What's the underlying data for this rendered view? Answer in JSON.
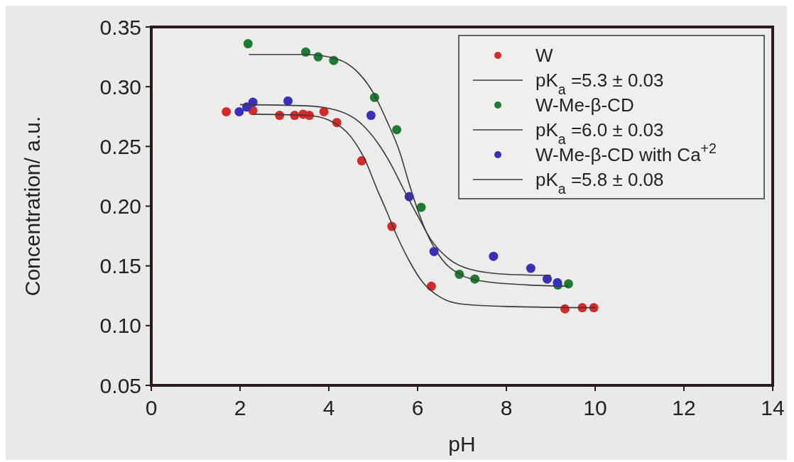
{
  "chart_data": {
    "type": "scatter",
    "xlabel": "pH",
    "ylabel": "Concentration/ a.u.",
    "xlim": [
      0,
      14
    ],
    "ylim": [
      0.05,
      0.35
    ],
    "xticks": [
      0,
      2,
      4,
      6,
      8,
      10,
      12,
      14
    ],
    "yticks": [
      {
        "value": 0.05,
        "label": "0.05"
      },
      {
        "value": 0.1,
        "label": "0.10"
      },
      {
        "value": 0.15,
        "label": "0.15"
      },
      {
        "value": 0.2,
        "label": "0.20"
      },
      {
        "value": 0.25,
        "label": "0.25"
      },
      {
        "value": 0.3,
        "label": "0.30"
      },
      {
        "value": 0.35,
        "label": "0.35"
      }
    ],
    "grid": false,
    "legend": "top right",
    "marker": "circle",
    "series": [
      {
        "name": "W",
        "color": "#d42a2a",
        "x": [
          1.69,
          2.29,
          2.89,
          3.23,
          3.42,
          3.56,
          3.89,
          4.18,
          4.74,
          5.42,
          6.31,
          9.32,
          9.71,
          9.97
        ],
        "values": [
          0.279,
          0.28,
          0.276,
          0.276,
          0.277,
          0.276,
          0.279,
          0.27,
          0.238,
          0.183,
          0.133,
          0.114,
          0.115,
          0.115
        ]
      },
      {
        "name": "pK$_{a}$ =5.3 ± 0.03",
        "type": "line",
        "color": "#3a3a3a",
        "marker": "none",
        "x": [
          2.3,
          3.5,
          4.0,
          4.5,
          4.8,
          5.1,
          5.3,
          5.5,
          5.8,
          6.1,
          6.5,
          7.0,
          8.0,
          10.0
        ],
        "values": [
          0.277,
          0.276,
          0.272,
          0.258,
          0.24,
          0.213,
          0.196,
          0.178,
          0.155,
          0.137,
          0.124,
          0.118,
          0.116,
          0.115
        ]
      },
      {
        "name": "W-Me-β-CD",
        "color": "#1f7a32",
        "x": [
          2.18,
          3.48,
          3.76,
          4.11,
          5.03,
          5.53,
          6.08,
          6.94,
          7.29,
          9.16,
          9.4
        ],
        "values": [
          0.336,
          0.329,
          0.325,
          0.322,
          0.291,
          0.264,
          0.199,
          0.143,
          0.139,
          0.134,
          0.135
        ]
      },
      {
        "name": "pK$_{a}$ =6.0 ± 0.03",
        "type": "line",
        "color": "#3a3a3a",
        "marker": "none",
        "x": [
          2.2,
          3.5,
          4.2,
          4.6,
          5.0,
          5.3,
          5.6,
          5.8,
          6.0,
          6.2,
          6.5,
          7.0,
          7.5,
          8.5,
          9.4
        ],
        "values": [
          0.327,
          0.327,
          0.323,
          0.314,
          0.295,
          0.272,
          0.245,
          0.22,
          0.197,
          0.178,
          0.158,
          0.142,
          0.137,
          0.134,
          0.133
        ]
      },
      {
        "name": "W-Me-β-CD with Ca$^{+2}$",
        "color": "#3a2fb8",
        "x": [
          1.98,
          2.15,
          2.29,
          3.08,
          4.95,
          5.81,
          6.37,
          7.71,
          8.55,
          8.92,
          9.15
        ],
        "values": [
          0.279,
          0.283,
          0.287,
          0.288,
          0.276,
          0.208,
          0.162,
          0.158,
          0.148,
          0.139,
          0.136
        ]
      },
      {
        "name": "pK$_{a}$ =5.8 ± 0.08",
        "type": "line",
        "color": "#3a3a3a",
        "marker": "none",
        "x": [
          2.0,
          3.5,
          4.2,
          4.7,
          5.1,
          5.4,
          5.7,
          6.0,
          6.3,
          6.7,
          7.2,
          8.0,
          9.0
        ],
        "values": [
          0.285,
          0.284,
          0.28,
          0.27,
          0.253,
          0.235,
          0.213,
          0.192,
          0.172,
          0.156,
          0.147,
          0.143,
          0.142
        ]
      }
    ]
  }
}
